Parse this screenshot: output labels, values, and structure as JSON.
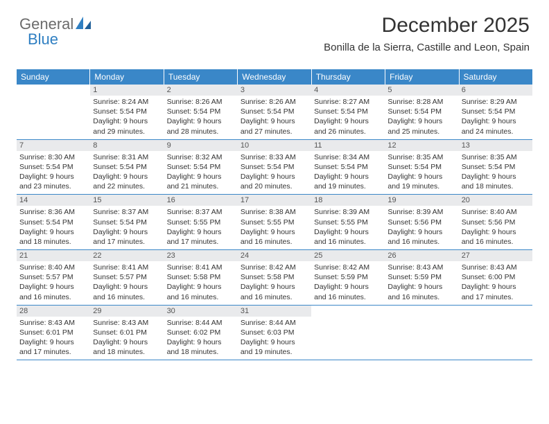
{
  "brand": {
    "part1": "General",
    "part2": "Blue"
  },
  "title": "December 2025",
  "location": "Bonilla de la Sierra, Castille and Leon, Spain",
  "colors": {
    "header_bg": "#3a87c8",
    "header_text": "#ffffff",
    "daynum_bg": "#e9eaec",
    "daynum_text": "#555555",
    "body_text": "#333333",
    "row_border": "#3a87c8",
    "logo_gray": "#6b6b6b",
    "logo_blue": "#2f7fc2"
  },
  "day_headers": [
    "Sunday",
    "Monday",
    "Tuesday",
    "Wednesday",
    "Thursday",
    "Friday",
    "Saturday"
  ],
  "weeks": [
    [
      {
        "empty": true
      },
      {
        "num": "1",
        "sunrise": "8:24 AM",
        "sunset": "5:54 PM",
        "daylight": "9 hours and 29 minutes."
      },
      {
        "num": "2",
        "sunrise": "8:26 AM",
        "sunset": "5:54 PM",
        "daylight": "9 hours and 28 minutes."
      },
      {
        "num": "3",
        "sunrise": "8:26 AM",
        "sunset": "5:54 PM",
        "daylight": "9 hours and 27 minutes."
      },
      {
        "num": "4",
        "sunrise": "8:27 AM",
        "sunset": "5:54 PM",
        "daylight": "9 hours and 26 minutes."
      },
      {
        "num": "5",
        "sunrise": "8:28 AM",
        "sunset": "5:54 PM",
        "daylight": "9 hours and 25 minutes."
      },
      {
        "num": "6",
        "sunrise": "8:29 AM",
        "sunset": "5:54 PM",
        "daylight": "9 hours and 24 minutes."
      }
    ],
    [
      {
        "num": "7",
        "sunrise": "8:30 AM",
        "sunset": "5:54 PM",
        "daylight": "9 hours and 23 minutes."
      },
      {
        "num": "8",
        "sunrise": "8:31 AM",
        "sunset": "5:54 PM",
        "daylight": "9 hours and 22 minutes."
      },
      {
        "num": "9",
        "sunrise": "8:32 AM",
        "sunset": "5:54 PM",
        "daylight": "9 hours and 21 minutes."
      },
      {
        "num": "10",
        "sunrise": "8:33 AM",
        "sunset": "5:54 PM",
        "daylight": "9 hours and 20 minutes."
      },
      {
        "num": "11",
        "sunrise": "8:34 AM",
        "sunset": "5:54 PM",
        "daylight": "9 hours and 19 minutes."
      },
      {
        "num": "12",
        "sunrise": "8:35 AM",
        "sunset": "5:54 PM",
        "daylight": "9 hours and 19 minutes."
      },
      {
        "num": "13",
        "sunrise": "8:35 AM",
        "sunset": "5:54 PM",
        "daylight": "9 hours and 18 minutes."
      }
    ],
    [
      {
        "num": "14",
        "sunrise": "8:36 AM",
        "sunset": "5:54 PM",
        "daylight": "9 hours and 18 minutes."
      },
      {
        "num": "15",
        "sunrise": "8:37 AM",
        "sunset": "5:54 PM",
        "daylight": "9 hours and 17 minutes."
      },
      {
        "num": "16",
        "sunrise": "8:37 AM",
        "sunset": "5:55 PM",
        "daylight": "9 hours and 17 minutes."
      },
      {
        "num": "17",
        "sunrise": "8:38 AM",
        "sunset": "5:55 PM",
        "daylight": "9 hours and 16 minutes."
      },
      {
        "num": "18",
        "sunrise": "8:39 AM",
        "sunset": "5:55 PM",
        "daylight": "9 hours and 16 minutes."
      },
      {
        "num": "19",
        "sunrise": "8:39 AM",
        "sunset": "5:56 PM",
        "daylight": "9 hours and 16 minutes."
      },
      {
        "num": "20",
        "sunrise": "8:40 AM",
        "sunset": "5:56 PM",
        "daylight": "9 hours and 16 minutes."
      }
    ],
    [
      {
        "num": "21",
        "sunrise": "8:40 AM",
        "sunset": "5:57 PM",
        "daylight": "9 hours and 16 minutes."
      },
      {
        "num": "22",
        "sunrise": "8:41 AM",
        "sunset": "5:57 PM",
        "daylight": "9 hours and 16 minutes."
      },
      {
        "num": "23",
        "sunrise": "8:41 AM",
        "sunset": "5:58 PM",
        "daylight": "9 hours and 16 minutes."
      },
      {
        "num": "24",
        "sunrise": "8:42 AM",
        "sunset": "5:58 PM",
        "daylight": "9 hours and 16 minutes."
      },
      {
        "num": "25",
        "sunrise": "8:42 AM",
        "sunset": "5:59 PM",
        "daylight": "9 hours and 16 minutes."
      },
      {
        "num": "26",
        "sunrise": "8:43 AM",
        "sunset": "5:59 PM",
        "daylight": "9 hours and 16 minutes."
      },
      {
        "num": "27",
        "sunrise": "8:43 AM",
        "sunset": "6:00 PM",
        "daylight": "9 hours and 17 minutes."
      }
    ],
    [
      {
        "num": "28",
        "sunrise": "8:43 AM",
        "sunset": "6:01 PM",
        "daylight": "9 hours and 17 minutes."
      },
      {
        "num": "29",
        "sunrise": "8:43 AM",
        "sunset": "6:01 PM",
        "daylight": "9 hours and 18 minutes."
      },
      {
        "num": "30",
        "sunrise": "8:44 AM",
        "sunset": "6:02 PM",
        "daylight": "9 hours and 18 minutes."
      },
      {
        "num": "31",
        "sunrise": "8:44 AM",
        "sunset": "6:03 PM",
        "daylight": "9 hours and 19 minutes."
      },
      {
        "empty": true
      },
      {
        "empty": true
      },
      {
        "empty": true
      }
    ]
  ],
  "labels": {
    "sunrise": "Sunrise:",
    "sunset": "Sunset:",
    "daylight": "Daylight:"
  }
}
